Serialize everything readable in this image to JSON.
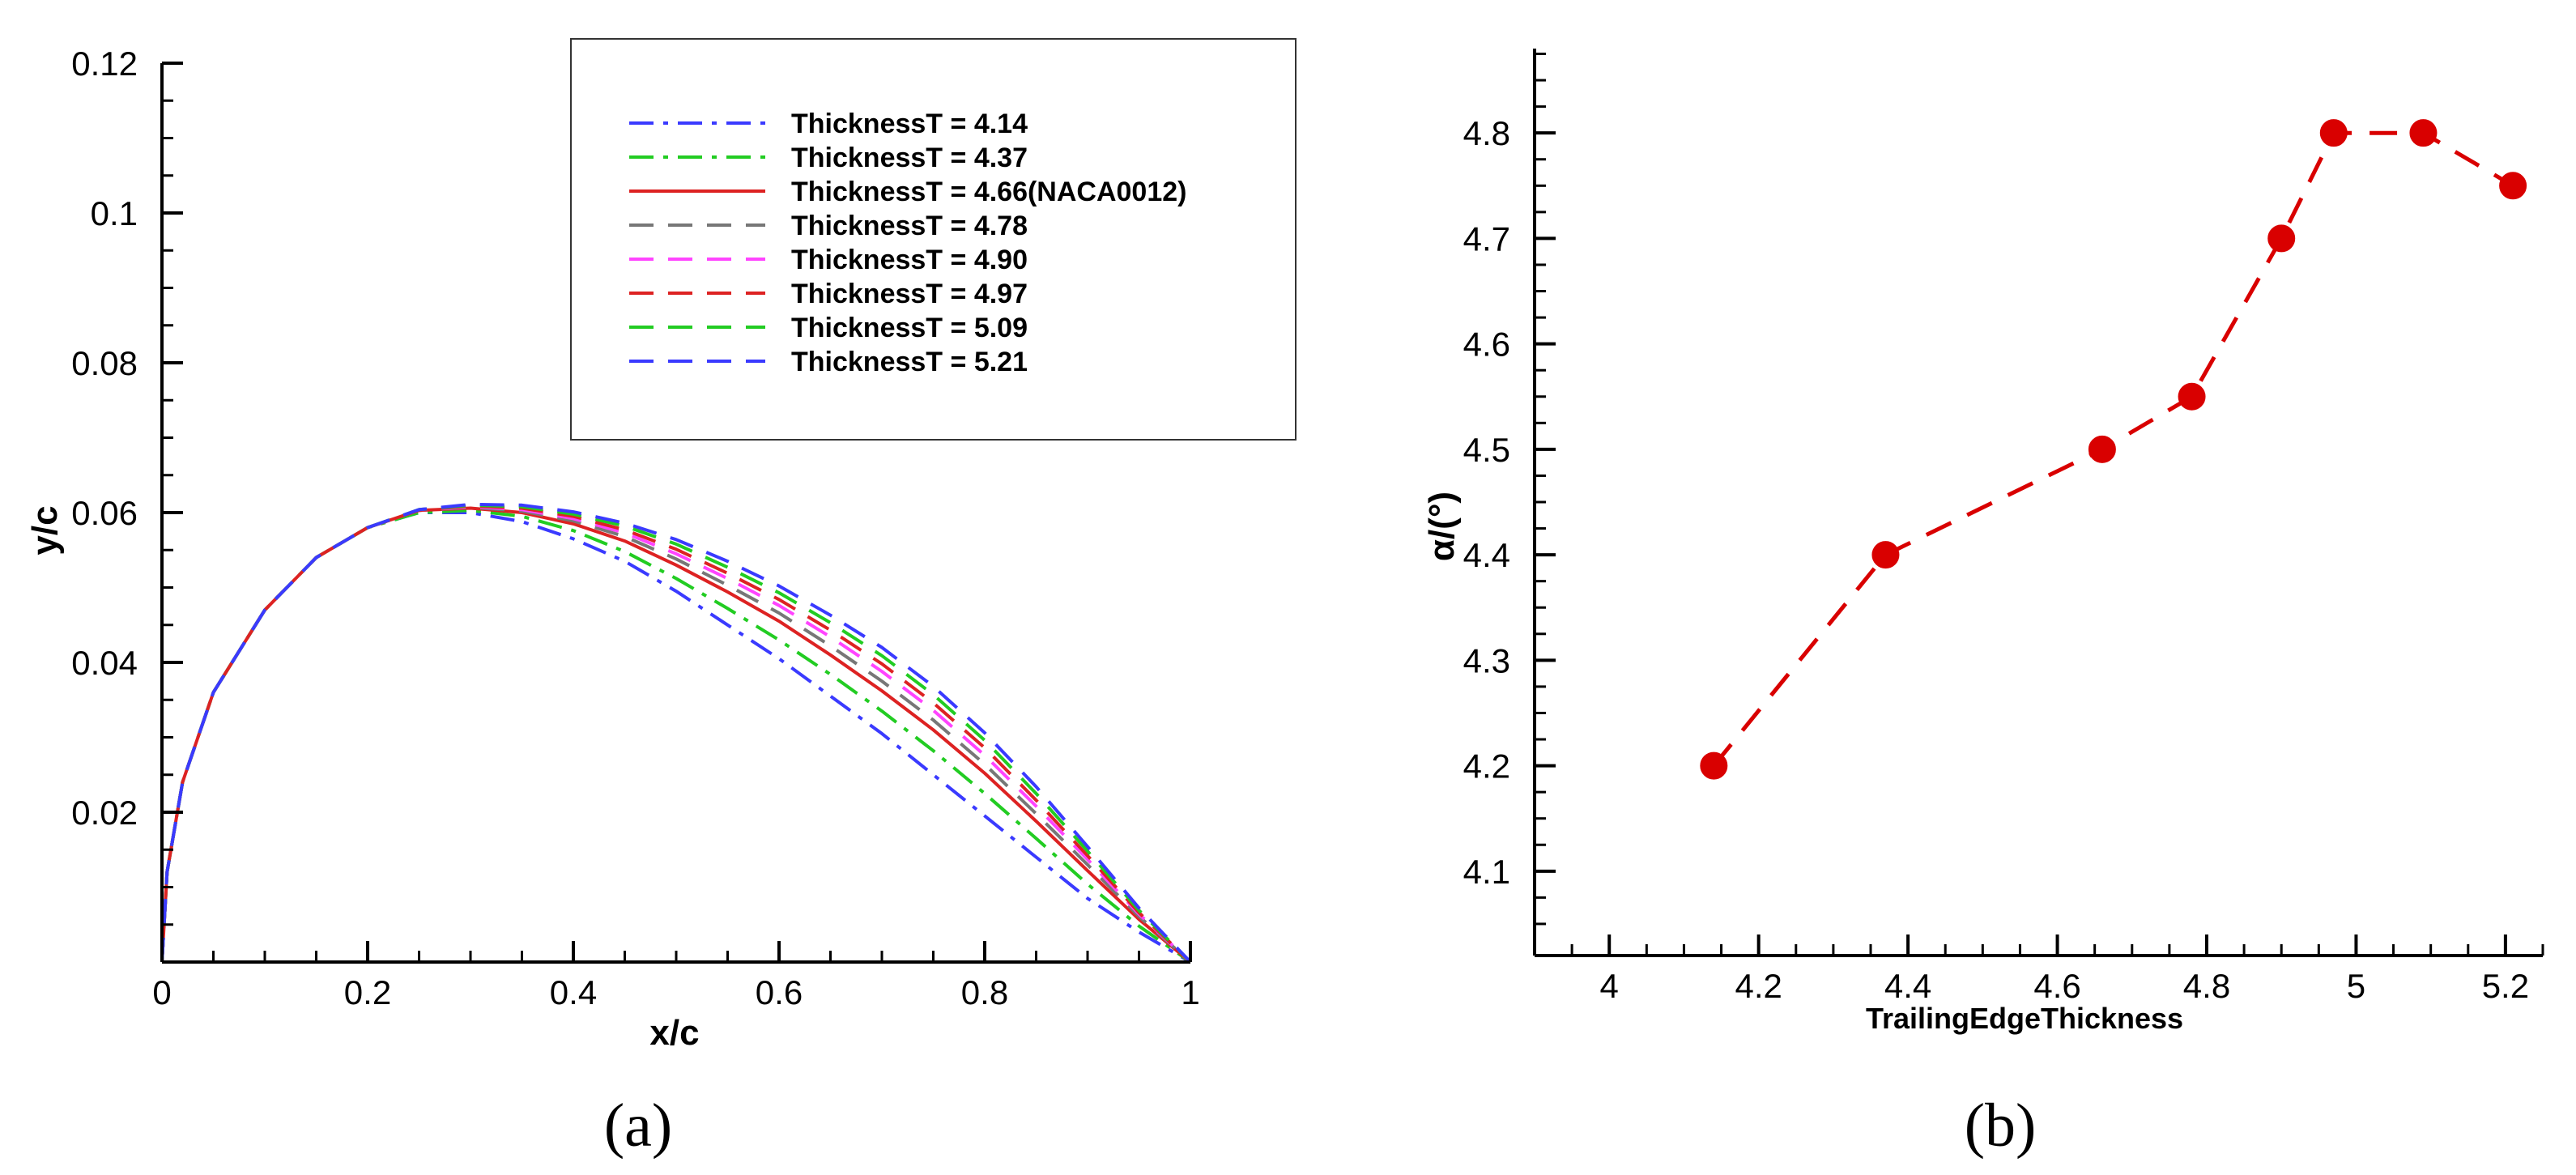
{
  "chart_data": [
    {
      "type": "line",
      "panel_label": "(a)",
      "xlabel": "x/c",
      "ylabel": "y/c",
      "xlim": [
        0,
        1
      ],
      "ylim": [
        0,
        0.12
      ],
      "xticks": [
        0,
        0.2,
        0.4,
        0.6,
        0.8,
        1
      ],
      "xtick_labels": [
        "0",
        "0.2",
        "0.4",
        "0.6",
        "0.8",
        "1"
      ],
      "yticks": [
        0.02,
        0.04,
        0.06,
        0.08,
        0.1,
        0.12
      ],
      "ytick_labels": [
        "0.02",
        "0.04",
        "0.06",
        "0.08",
        "0.1",
        "0.12"
      ],
      "legend_position": "top-right",
      "series": [
        {
          "name": "ThicknessT = 4.14",
          "color": "#3a3aff",
          "dash": "dash-dot",
          "points": [
            [
              0,
              0
            ],
            [
              0.005,
              0.012
            ],
            [
              0.02,
              0.024
            ],
            [
              0.05,
              0.036
            ],
            [
              0.1,
              0.047
            ],
            [
              0.15,
              0.054
            ],
            [
              0.2,
              0.058
            ],
            [
              0.25,
              0.06
            ],
            [
              0.3,
              0.06
            ],
            [
              0.35,
              0.0588
            ],
            [
              0.4,
              0.0565
            ],
            [
              0.45,
              0.0535
            ],
            [
              0.5,
              0.0495
            ],
            [
              0.55,
              0.045
            ],
            [
              0.6,
              0.0405
            ],
            [
              0.65,
              0.0355
            ],
            [
              0.7,
              0.0305
            ],
            [
              0.75,
              0.025
            ],
            [
              0.8,
              0.0195
            ],
            [
              0.85,
              0.014
            ],
            [
              0.9,
              0.0085
            ],
            [
              0.95,
              0.004
            ],
            [
              1,
              0
            ]
          ]
        },
        {
          "name": "ThicknessT = 4.37",
          "color": "#22cc22",
          "dash": "dash-dot",
          "points": [
            [
              0,
              0
            ],
            [
              0.005,
              0.012
            ],
            [
              0.02,
              0.024
            ],
            [
              0.05,
              0.036
            ],
            [
              0.1,
              0.047
            ],
            [
              0.15,
              0.054
            ],
            [
              0.2,
              0.058
            ],
            [
              0.25,
              0.06
            ],
            [
              0.3,
              0.0603
            ],
            [
              0.35,
              0.0595
            ],
            [
              0.4,
              0.0576
            ],
            [
              0.45,
              0.0548
            ],
            [
              0.5,
              0.0512
            ],
            [
              0.55,
              0.0472
            ],
            [
              0.6,
              0.043
            ],
            [
              0.65,
              0.0384
            ],
            [
              0.7,
              0.0335
            ],
            [
              0.75,
              0.0282
            ],
            [
              0.8,
              0.0225
            ],
            [
              0.85,
              0.0165
            ],
            [
              0.9,
              0.0104
            ],
            [
              0.95,
              0.0048
            ],
            [
              1,
              0
            ]
          ]
        },
        {
          "name": "ThicknessT = 4.66(NACA0012)",
          "color": "#dd2222",
          "dash": "solid",
          "points": [
            [
              0,
              0
            ],
            [
              0.005,
              0.012
            ],
            [
              0.02,
              0.024
            ],
            [
              0.05,
              0.036
            ],
            [
              0.1,
              0.047
            ],
            [
              0.15,
              0.054
            ],
            [
              0.2,
              0.058
            ],
            [
              0.25,
              0.0603
            ],
            [
              0.3,
              0.0606
            ],
            [
              0.35,
              0.06
            ],
            [
              0.4,
              0.0585
            ],
            [
              0.45,
              0.0562
            ],
            [
              0.5,
              0.053
            ],
            [
              0.55,
              0.0494
            ],
            [
              0.6,
              0.0455
            ],
            [
              0.65,
              0.041
            ],
            [
              0.7,
              0.0362
            ],
            [
              0.75,
              0.031
            ],
            [
              0.8,
              0.0252
            ],
            [
              0.85,
              0.0188
            ],
            [
              0.9,
              0.0122
            ],
            [
              0.95,
              0.0057
            ],
            [
              1,
              0
            ]
          ]
        },
        {
          "name": "ThicknessT = 4.78",
          "color": "#777777",
          "dash": "dashed",
          "points": [
            [
              0,
              0
            ],
            [
              0.005,
              0.012
            ],
            [
              0.02,
              0.024
            ],
            [
              0.05,
              0.036
            ],
            [
              0.1,
              0.047
            ],
            [
              0.15,
              0.054
            ],
            [
              0.2,
              0.058
            ],
            [
              0.25,
              0.0603
            ],
            [
              0.3,
              0.0607
            ],
            [
              0.35,
              0.0602
            ],
            [
              0.4,
              0.0589
            ],
            [
              0.45,
              0.0568
            ],
            [
              0.5,
              0.0538
            ],
            [
              0.55,
              0.0503
            ],
            [
              0.6,
              0.0466
            ],
            [
              0.65,
              0.0422
            ],
            [
              0.7,
              0.0375
            ],
            [
              0.75,
              0.0323
            ],
            [
              0.8,
              0.0264
            ],
            [
              0.85,
              0.0198
            ],
            [
              0.9,
              0.013
            ],
            [
              0.95,
              0.0061
            ],
            [
              1,
              0
            ]
          ]
        },
        {
          "name": "ThicknessT = 4.90",
          "color": "#ff44ff",
          "dash": "dashed",
          "points": [
            [
              0,
              0
            ],
            [
              0.005,
              0.012
            ],
            [
              0.02,
              0.024
            ],
            [
              0.05,
              0.036
            ],
            [
              0.1,
              0.047
            ],
            [
              0.15,
              0.054
            ],
            [
              0.2,
              0.058
            ],
            [
              0.25,
              0.0603
            ],
            [
              0.3,
              0.0608
            ],
            [
              0.35,
              0.0604
            ],
            [
              0.4,
              0.0592
            ],
            [
              0.45,
              0.0573
            ],
            [
              0.5,
              0.0545
            ],
            [
              0.55,
              0.0512
            ],
            [
              0.6,
              0.0476
            ],
            [
              0.65,
              0.0434
            ],
            [
              0.7,
              0.0388
            ],
            [
              0.75,
              0.0336
            ],
            [
              0.8,
              0.0276
            ],
            [
              0.85,
              0.0208
            ],
            [
              0.9,
              0.0137
            ],
            [
              0.95,
              0.0064
            ],
            [
              1,
              0
            ]
          ]
        },
        {
          "name": "ThicknessT = 4.97",
          "color": "#dd2222",
          "dash": "dashed",
          "points": [
            [
              0,
              0
            ],
            [
              0.005,
              0.012
            ],
            [
              0.02,
              0.024
            ],
            [
              0.05,
              0.036
            ],
            [
              0.1,
              0.047
            ],
            [
              0.15,
              0.054
            ],
            [
              0.2,
              0.058
            ],
            [
              0.25,
              0.0603
            ],
            [
              0.3,
              0.0609
            ],
            [
              0.35,
              0.0606
            ],
            [
              0.4,
              0.0595
            ],
            [
              0.45,
              0.0577
            ],
            [
              0.5,
              0.0551
            ],
            [
              0.55,
              0.0519
            ],
            [
              0.6,
              0.0484
            ],
            [
              0.65,
              0.0443
            ],
            [
              0.7,
              0.0398
            ],
            [
              0.75,
              0.0346
            ],
            [
              0.8,
              0.0286
            ],
            [
              0.85,
              0.0216
            ],
            [
              0.9,
              0.0142
            ],
            [
              0.95,
              0.0066
            ],
            [
              1,
              0
            ]
          ]
        },
        {
          "name": "ThicknessT = 5.09",
          "color": "#22cc22",
          "dash": "dashed",
          "points": [
            [
              0,
              0
            ],
            [
              0.005,
              0.012
            ],
            [
              0.02,
              0.024
            ],
            [
              0.05,
              0.036
            ],
            [
              0.1,
              0.047
            ],
            [
              0.15,
              0.054
            ],
            [
              0.2,
              0.058
            ],
            [
              0.25,
              0.0604
            ],
            [
              0.3,
              0.061
            ],
            [
              0.35,
              0.0608
            ],
            [
              0.4,
              0.0598
            ],
            [
              0.45,
              0.0582
            ],
            [
              0.5,
              0.0558
            ],
            [
              0.55,
              0.0527
            ],
            [
              0.6,
              0.0493
            ],
            [
              0.65,
              0.0453
            ],
            [
              0.7,
              0.0409
            ],
            [
              0.75,
              0.0357
            ],
            [
              0.8,
              0.0296
            ],
            [
              0.85,
              0.0225
            ],
            [
              0.9,
              0.0148
            ],
            [
              0.95,
              0.0069
            ],
            [
              1,
              0
            ]
          ]
        },
        {
          "name": "ThicknessT = 5.21",
          "color": "#3a3aff",
          "dash": "dashed",
          "points": [
            [
              0,
              0
            ],
            [
              0.005,
              0.012
            ],
            [
              0.02,
              0.024
            ],
            [
              0.05,
              0.036
            ],
            [
              0.1,
              0.047
            ],
            [
              0.15,
              0.054
            ],
            [
              0.2,
              0.058
            ],
            [
              0.25,
              0.0604
            ],
            [
              0.3,
              0.0611
            ],
            [
              0.35,
              0.061
            ],
            [
              0.4,
              0.0601
            ],
            [
              0.45,
              0.0586
            ],
            [
              0.5,
              0.0564
            ],
            [
              0.55,
              0.0535
            ],
            [
              0.6,
              0.0502
            ],
            [
              0.65,
              0.0463
            ],
            [
              0.7,
              0.042
            ],
            [
              0.75,
              0.0368
            ],
            [
              0.8,
              0.0306
            ],
            [
              0.85,
              0.0234
            ],
            [
              0.9,
              0.0154
            ],
            [
              0.95,
              0.0072
            ],
            [
              1,
              0
            ]
          ]
        }
      ]
    },
    {
      "type": "line",
      "panel_label": "(b)",
      "xlabel": "TrailingEdgeThickness",
      "ylabel": "α/(°)",
      "xlim": [
        3.9,
        5.25
      ],
      "ylim": [
        4.02,
        4.88
      ],
      "xticks": [
        4,
        4.2,
        4.4,
        4.6,
        4.8,
        5,
        5.2
      ],
      "xtick_labels": [
        "4",
        "4.2",
        "4.4",
        "4.6",
        "4.8",
        "5",
        "5.2"
      ],
      "yticks": [
        4.1,
        4.2,
        4.3,
        4.4,
        4.5,
        4.6,
        4.7,
        4.8
      ],
      "ytick_labels": [
        "4.1",
        "4.2",
        "4.3",
        "4.4",
        "4.5",
        "4.6",
        "4.7",
        "4.8"
      ],
      "series": [
        {
          "name": "alpha",
          "color": "#d90000",
          "dash": "dashed",
          "marker": "circle",
          "x": [
            4.14,
            4.37,
            4.66,
            4.78,
            4.9,
            4.97,
            5.09,
            5.21
          ],
          "y": [
            4.2,
            4.4,
            4.5,
            4.55,
            4.7,
            4.8,
            4.8,
            4.75
          ]
        }
      ]
    }
  ]
}
